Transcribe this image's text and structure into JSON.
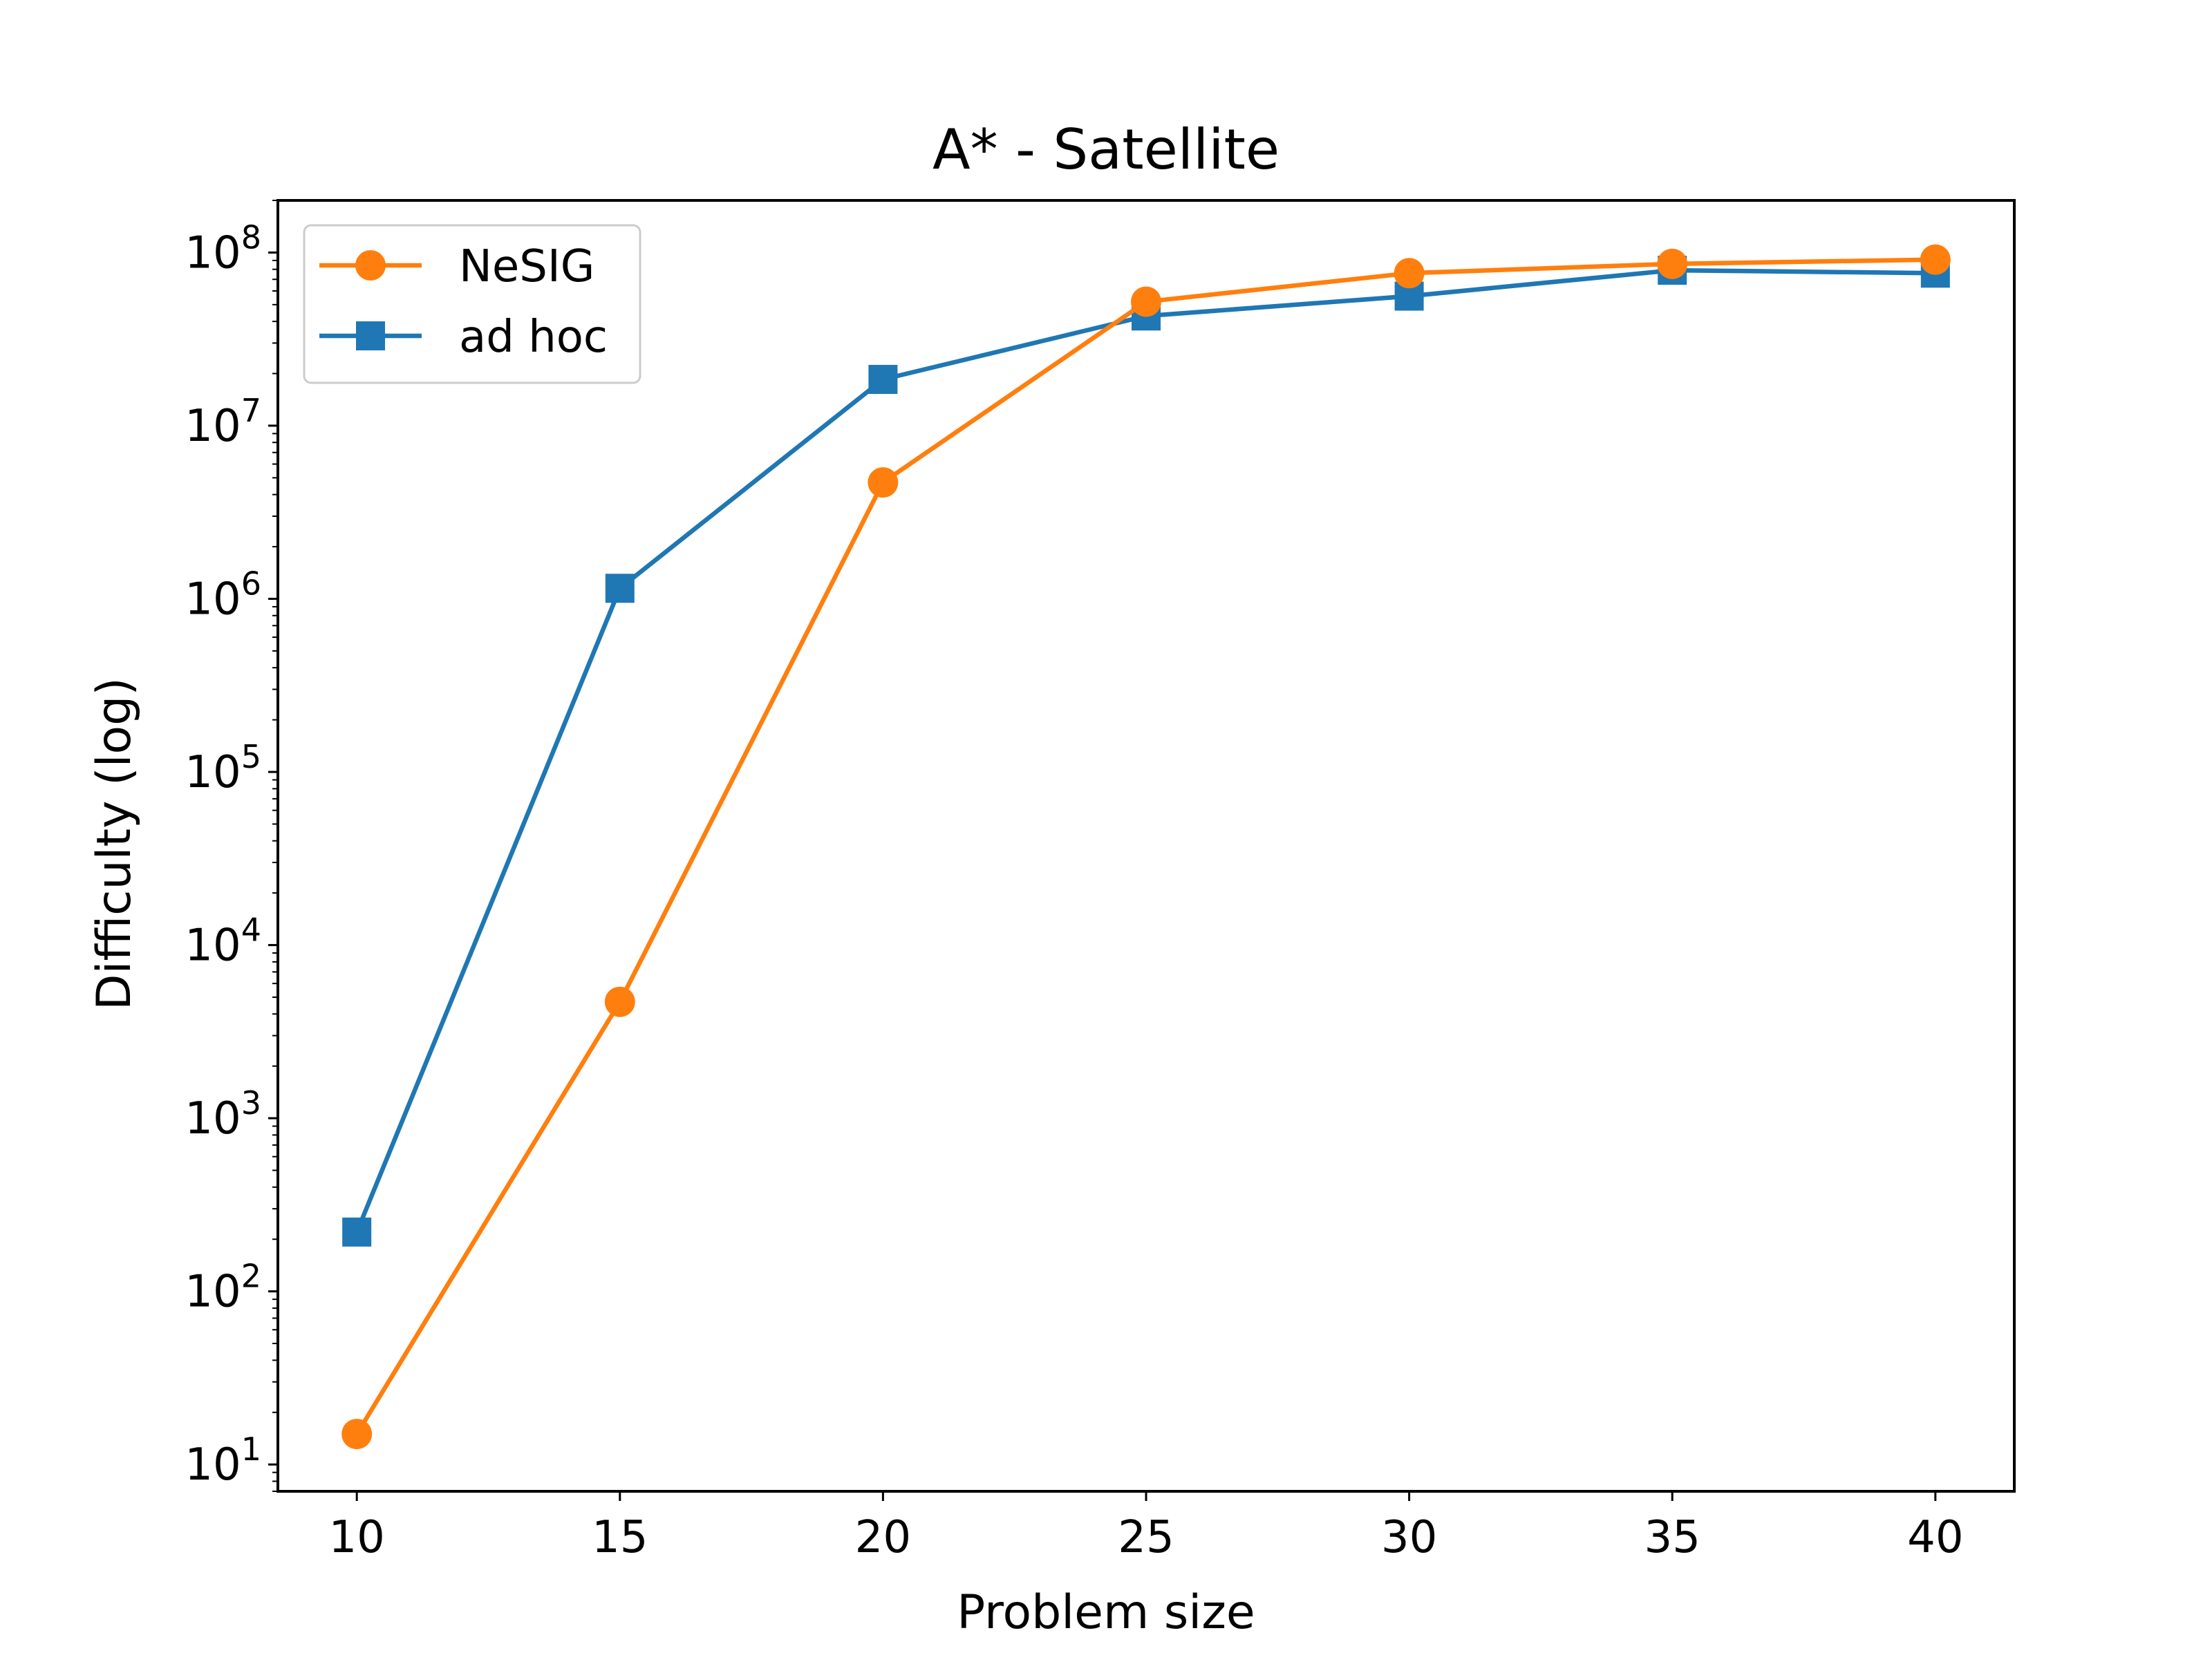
{
  "chart_data": {
    "type": "line",
    "title": "A* - Satellite",
    "xlabel": "Problem size",
    "ylabel": "Difficulty (log)",
    "x": [
      10,
      15,
      20,
      25,
      30,
      35,
      40
    ],
    "xlim": [
      8.5,
      41.5
    ],
    "xticks": [
      10,
      15,
      20,
      25,
      30,
      35,
      40
    ],
    "yscale": "log",
    "ylim": [
      7,
      200000000
    ],
    "yticks": [
      {
        "value": 10,
        "base": "10",
        "exp": "1"
      },
      {
        "value": 100,
        "base": "10",
        "exp": "2"
      },
      {
        "value": 1000,
        "base": "10",
        "exp": "3"
      },
      {
        "value": 10000,
        "base": "10",
        "exp": "4"
      },
      {
        "value": 100000,
        "base": "10",
        "exp": "5"
      },
      {
        "value": 1000000,
        "base": "10",
        "exp": "6"
      },
      {
        "value": 10000000,
        "base": "10",
        "exp": "7"
      },
      {
        "value": 100000000,
        "base": "10",
        "exp": "8"
      }
    ],
    "grid": false,
    "legend_position": "top-left",
    "series": [
      {
        "name": "NeSIG",
        "color": "#ff7f0e",
        "marker": "circle",
        "values": [
          15,
          4700,
          4700000,
          52000000,
          76000000,
          86000000,
          91000000
        ]
      },
      {
        "name": "ad hoc",
        "color": "#1f77b4",
        "marker": "square",
        "values": [
          220,
          1150000,
          18500000,
          43000000,
          56000000,
          79000000,
          76000000
        ]
      }
    ]
  }
}
